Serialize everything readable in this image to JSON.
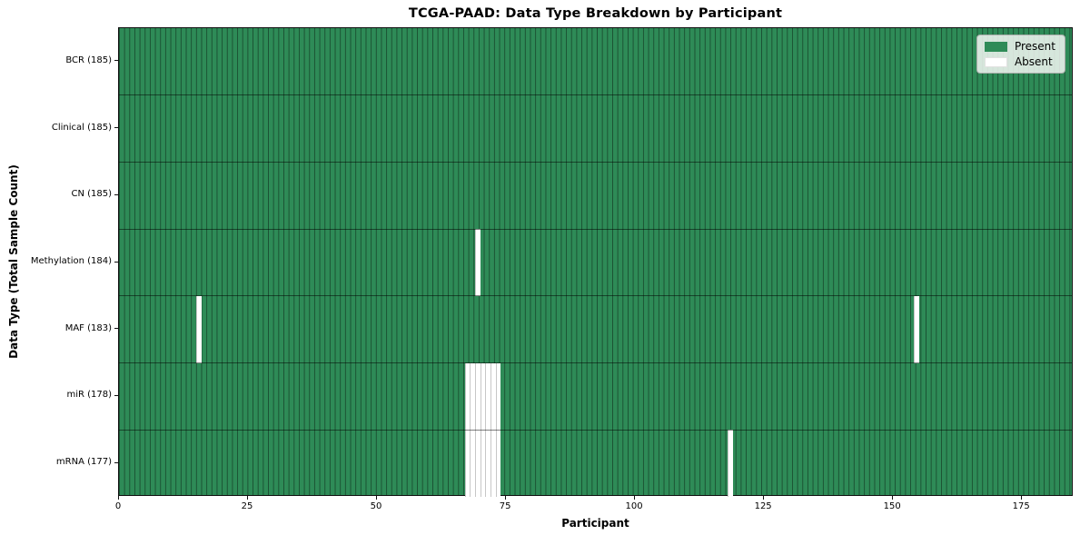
{
  "title": "TCGA-PAAD: Data Type Breakdown by Participant",
  "chart_data": {
    "type": "heatmap",
    "title": "TCGA-PAAD: Data Type Breakdown by Participant",
    "xlabel": "Participant",
    "ylabel": "Data Type (Total Sample Count)",
    "xlim": [
      0,
      185
    ],
    "n_participants": 185,
    "x_ticks": [
      0,
      25,
      50,
      75,
      100,
      125,
      150,
      175
    ],
    "grid": true,
    "legend_position": "upper right",
    "rows": [
      {
        "label": "BCR (185)",
        "data_type": "BCR",
        "total": 185,
        "absent_participants": []
      },
      {
        "label": "Clinical (185)",
        "data_type": "Clinical",
        "total": 185,
        "absent_participants": []
      },
      {
        "label": "CN (185)",
        "data_type": "CN",
        "total": 185,
        "absent_participants": []
      },
      {
        "label": "Methylation (184)",
        "data_type": "Methylation",
        "total": 184,
        "absent_participants": [
          69
        ]
      },
      {
        "label": "MAF (183)",
        "data_type": "MAF",
        "total": 183,
        "absent_participants": [
          15,
          154
        ]
      },
      {
        "label": "miR (178)",
        "data_type": "miR",
        "total": 178,
        "absent_participants": [
          67,
          68,
          69,
          70,
          71,
          72,
          73
        ]
      },
      {
        "label": "mRNA (177)",
        "data_type": "mRNA",
        "total": 177,
        "absent_participants": [
          67,
          68,
          69,
          70,
          71,
          72,
          73,
          118
        ]
      }
    ],
    "legend": [
      {
        "label": "Present",
        "color": "#2e8b57"
      },
      {
        "label": "Absent",
        "color": "#ffffff"
      }
    ],
    "colors": {
      "present": "#2e8b57",
      "absent": "#ffffff",
      "bar_edge_on_green": "rgba(0,0,0,0.42)",
      "bar_edge_on_white": "#c7c7c7",
      "spine": "#111111"
    }
  }
}
